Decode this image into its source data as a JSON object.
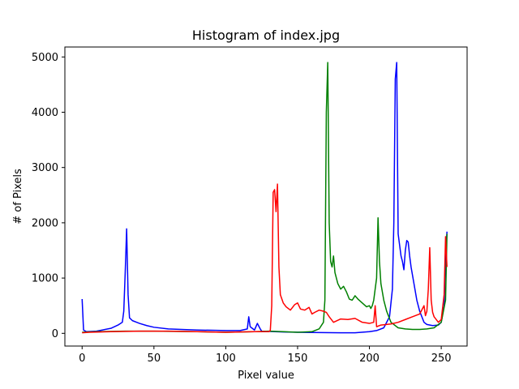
{
  "chart_data": {
    "type": "line",
    "title": "Histogram of index.jpg",
    "xlabel": "Pixel value",
    "ylabel": "# of Pixels",
    "xlim": [
      -12,
      268
    ],
    "ylim": [
      -230,
      5180
    ],
    "xticks": [
      0,
      50,
      100,
      150,
      200,
      250
    ],
    "yticks": [
      0,
      1000,
      2000,
      3000,
      4000,
      5000
    ],
    "grid": false,
    "series": [
      {
        "color": "#0000ff",
        "points": [
          [
            0,
            620
          ],
          [
            1,
            60
          ],
          [
            3,
            30
          ],
          [
            10,
            40
          ],
          [
            20,
            90
          ],
          [
            25,
            150
          ],
          [
            28,
            200
          ],
          [
            29,
            400
          ],
          [
            30,
            1100
          ],
          [
            31,
            1890
          ],
          [
            32,
            700
          ],
          [
            33,
            280
          ],
          [
            35,
            230
          ],
          [
            38,
            200
          ],
          [
            40,
            180
          ],
          [
            45,
            140
          ],
          [
            50,
            110
          ],
          [
            60,
            80
          ],
          [
            80,
            60
          ],
          [
            100,
            50
          ],
          [
            110,
            50
          ],
          [
            115,
            80
          ],
          [
            116,
            300
          ],
          [
            117,
            120
          ],
          [
            120,
            60
          ],
          [
            122,
            180
          ],
          [
            124,
            80
          ],
          [
            125,
            40
          ],
          [
            140,
            25
          ],
          [
            160,
            15
          ],
          [
            180,
            10
          ],
          [
            190,
            10
          ],
          [
            200,
            30
          ],
          [
            205,
            50
          ],
          [
            210,
            100
          ],
          [
            214,
            300
          ],
          [
            216,
            800
          ],
          [
            217,
            2000
          ],
          [
            218,
            4600
          ],
          [
            219,
            4900
          ],
          [
            220,
            1800
          ],
          [
            221,
            1600
          ],
          [
            222,
            1400
          ],
          [
            223,
            1300
          ],
          [
            224,
            1150
          ],
          [
            225,
            1500
          ],
          [
            226,
            1680
          ],
          [
            227,
            1650
          ],
          [
            228,
            1400
          ],
          [
            229,
            1200
          ],
          [
            231,
            900
          ],
          [
            233,
            600
          ],
          [
            235,
            400
          ],
          [
            238,
            200
          ],
          [
            240,
            160
          ],
          [
            244,
            140
          ],
          [
            248,
            150
          ],
          [
            250,
            200
          ],
          [
            252,
            500
          ],
          [
            253,
            1400
          ],
          [
            254,
            1840
          ]
        ]
      },
      {
        "color": "#008000",
        "points": [
          [
            0,
            20
          ],
          [
            10,
            30
          ],
          [
            30,
            40
          ],
          [
            50,
            40
          ],
          [
            80,
            30
          ],
          [
            100,
            20
          ],
          [
            120,
            30
          ],
          [
            130,
            40
          ],
          [
            140,
            30
          ],
          [
            150,
            20
          ],
          [
            160,
            30
          ],
          [
            165,
            80
          ],
          [
            168,
            200
          ],
          [
            169,
            600
          ],
          [
            170,
            4000
          ],
          [
            171,
            4900
          ],
          [
            172,
            2000
          ],
          [
            173,
            1300
          ],
          [
            174,
            1200
          ],
          [
            175,
            1400
          ],
          [
            176,
            1100
          ],
          [
            178,
            900
          ],
          [
            180,
            800
          ],
          [
            182,
            850
          ],
          [
            184,
            750
          ],
          [
            186,
            620
          ],
          [
            188,
            600
          ],
          [
            190,
            680
          ],
          [
            192,
            620
          ],
          [
            195,
            550
          ],
          [
            198,
            480
          ],
          [
            200,
            500
          ],
          [
            201,
            450
          ],
          [
            202,
            500
          ],
          [
            203,
            600
          ],
          [
            204,
            800
          ],
          [
            205,
            1000
          ],
          [
            206,
            2090
          ],
          [
            207,
            1300
          ],
          [
            208,
            900
          ],
          [
            210,
            600
          ],
          [
            212,
            400
          ],
          [
            215,
            200
          ],
          [
            220,
            100
          ],
          [
            225,
            80
          ],
          [
            230,
            70
          ],
          [
            235,
            70
          ],
          [
            240,
            80
          ],
          [
            245,
            100
          ],
          [
            250,
            200
          ],
          [
            253,
            600
          ],
          [
            254,
            1800
          ]
        ]
      },
      {
        "color": "#ff0000",
        "points": [
          [
            0,
            10
          ],
          [
            5,
            20
          ],
          [
            20,
            30
          ],
          [
            40,
            40
          ],
          [
            60,
            40
          ],
          [
            80,
            30
          ],
          [
            100,
            20
          ],
          [
            120,
            30
          ],
          [
            130,
            30
          ],
          [
            131,
            50
          ],
          [
            132,
            500
          ],
          [
            133,
            2550
          ],
          [
            134,
            2600
          ],
          [
            135,
            2200
          ],
          [
            136,
            2700
          ],
          [
            137,
            1200
          ],
          [
            138,
            700
          ],
          [
            140,
            550
          ],
          [
            142,
            480
          ],
          [
            145,
            420
          ],
          [
            148,
            520
          ],
          [
            150,
            550
          ],
          [
            152,
            440
          ],
          [
            155,
            420
          ],
          [
            158,
            470
          ],
          [
            160,
            350
          ],
          [
            162,
            380
          ],
          [
            165,
            420
          ],
          [
            168,
            400
          ],
          [
            170,
            380
          ],
          [
            172,
            300
          ],
          [
            175,
            200
          ],
          [
            180,
            260
          ],
          [
            185,
            250
          ],
          [
            190,
            270
          ],
          [
            195,
            200
          ],
          [
            200,
            180
          ],
          [
            203,
            200
          ],
          [
            204,
            500
          ],
          [
            205,
            120
          ],
          [
            208,
            150
          ],
          [
            215,
            170
          ],
          [
            220,
            200
          ],
          [
            225,
            250
          ],
          [
            230,
            300
          ],
          [
            235,
            350
          ],
          [
            238,
            500
          ],
          [
            239,
            320
          ],
          [
            240,
            400
          ],
          [
            241,
            800
          ],
          [
            242,
            1550
          ],
          [
            243,
            600
          ],
          [
            244,
            380
          ],
          [
            245,
            300
          ],
          [
            248,
            200
          ],
          [
            250,
            250
          ],
          [
            252,
            700
          ],
          [
            253,
            1750
          ],
          [
            254,
            1200
          ]
        ]
      }
    ]
  }
}
